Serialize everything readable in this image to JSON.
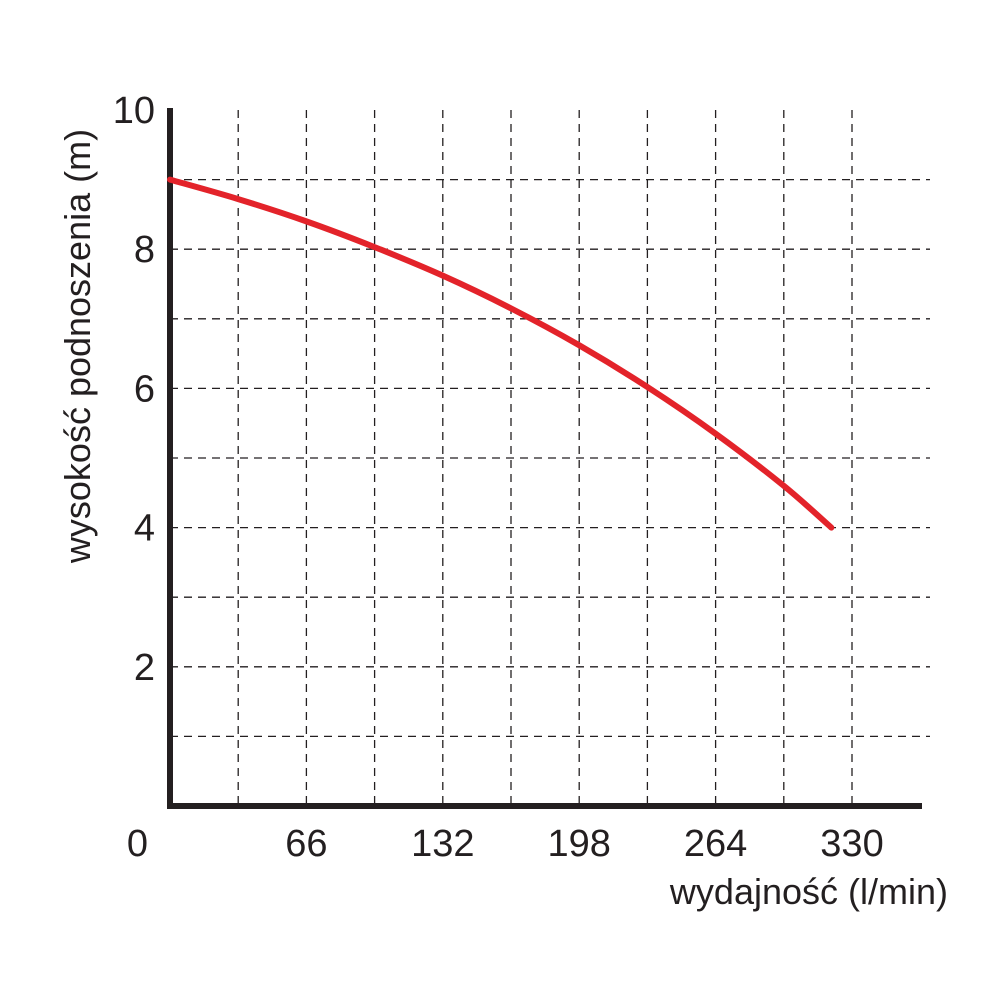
{
  "chart_data": {
    "type": "line",
    "title": "",
    "xlabel": "wydajność (l/min)",
    "ylabel": "wysokość podnoszenia (m)",
    "x_ticks": [
      "0",
      "66",
      "132",
      "198",
      "264",
      "330"
    ],
    "y_ticks": [
      "2",
      "4",
      "6",
      "8",
      "10"
    ],
    "xlim": [
      0,
      330
    ],
    "ylim": [
      0,
      10
    ],
    "grid": true,
    "grid_style": "dashed",
    "grid_x_step": 33,
    "grid_y_step": 1,
    "legend": "none",
    "series": [
      {
        "color": "#e3232a",
        "x": [
          0,
          33,
          66,
          99,
          132,
          165,
          198,
          231,
          264,
          297,
          320
        ],
        "y": [
          9.0,
          8.72,
          8.4,
          8.03,
          7.62,
          7.15,
          6.62,
          6.02,
          5.35,
          4.6,
          4.0
        ]
      }
    ],
    "colors": {
      "axis": "#231f20",
      "grid": "#231f20",
      "line": "#e3232a"
    }
  }
}
